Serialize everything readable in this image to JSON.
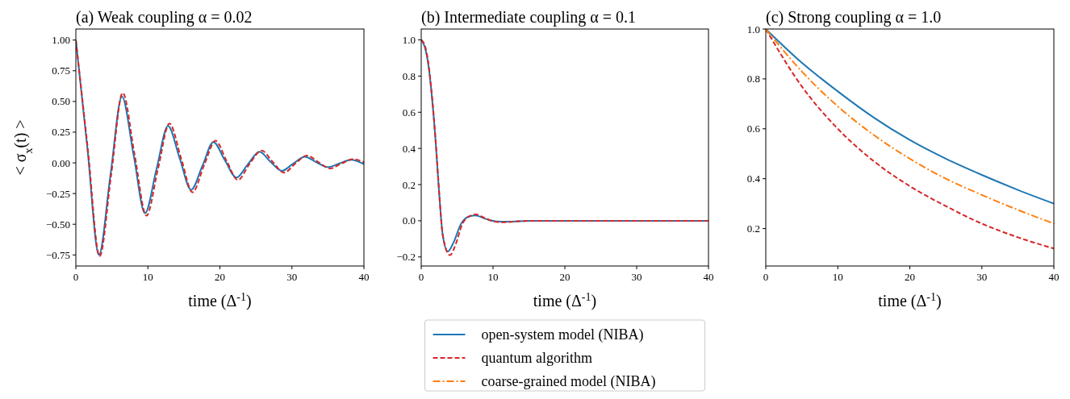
{
  "chart_data": [
    {
      "type": "line",
      "title": "(a) Weak coupling α = 0.02",
      "xlabel": "time (Δ$^{-1}$)",
      "ylabel": "< σ$_{x}$(t) >",
      "xlim": [
        0,
        40
      ],
      "xticks": [
        0,
        10,
        20,
        30,
        40
      ],
      "ylim": [
        -0.84,
        1.09
      ],
      "yticks": [
        {
          "value": -0.75,
          "label": "−0.75"
        },
        {
          "value": -0.5,
          "label": "−0.50"
        },
        {
          "value": -0.25,
          "label": "−0.25"
        },
        {
          "value": 0,
          "label": "0.00"
        },
        {
          "value": 0.25,
          "label": "0.25"
        },
        {
          "value": 0.5,
          "label": "0.50"
        },
        {
          "value": 0.75,
          "label": "0.75"
        },
        {
          "value": 1,
          "label": "1.00"
        }
      ],
      "grid": false,
      "series": [
        {
          "color": "#1f77b4",
          "line_style": "solid",
          "x": [
            0,
            1.6,
            3.2,
            4.8,
            6.4,
            8.0,
            9.6,
            11.2,
            12.8,
            14.4,
            16.0,
            17.6,
            19.1,
            20.7,
            22.3,
            23.9,
            25.5,
            27.0,
            28.6,
            30.2,
            31.8,
            33.4,
            35.0,
            36.6,
            38.2,
            40
          ],
          "values": [
            1.0,
            0.12,
            -0.75,
            -0.1,
            0.54,
            0.07,
            -0.41,
            -0.05,
            0.3,
            0.04,
            -0.22,
            -0.02,
            0.17,
            0.02,
            -0.12,
            -0.01,
            0.09,
            0.01,
            -0.065,
            -0.005,
            0.05,
            0.005,
            -0.035,
            -0.005,
            0.025,
            -0.01
          ]
        },
        {
          "color": "#d62728",
          "line_style": "dashed",
          "x": [
            0,
            1.65,
            3.3,
            4.9,
            6.5,
            8.15,
            9.8,
            11.4,
            13.0,
            14.6,
            16.2,
            17.8,
            19.4,
            20.9,
            22.5,
            24.1,
            25.8,
            27.3,
            28.9,
            30.5,
            32.1,
            33.7,
            35.3,
            36.9,
            38.5,
            40
          ],
          "values": [
            1.0,
            0.12,
            -0.76,
            -0.1,
            0.57,
            0.07,
            -0.43,
            -0.05,
            0.32,
            0.04,
            -0.24,
            -0.02,
            0.18,
            0.02,
            -0.14,
            -0.01,
            0.1,
            0.01,
            -0.08,
            -0.005,
            0.06,
            0.005,
            -0.045,
            -0.005,
            0.03,
            0.005
          ]
        }
      ]
    },
    {
      "type": "line",
      "title": "(b) Intermediate coupling α = 0.1",
      "xlabel": "time (Δ$^{-1}$)",
      "xlim": [
        0,
        40
      ],
      "xticks": [
        0,
        10,
        20,
        30,
        40
      ],
      "ylim": [
        -0.25,
        1.06
      ],
      "yticks": [
        {
          "value": -0.2,
          "label": "−0.2"
        },
        {
          "value": 0,
          "label": "0.0"
        },
        {
          "value": 0.2,
          "label": "0.2"
        },
        {
          "value": 0.4,
          "label": "0.4"
        },
        {
          "value": 0.6,
          "label": "0.6"
        },
        {
          "value": 0.8,
          "label": "0.8"
        },
        {
          "value": 1,
          "label": "1.0"
        }
      ],
      "grid": false,
      "series": [
        {
          "color": "#1f77b4",
          "line_style": "solid",
          "x": [
            0,
            0.5,
            1,
            1.5,
            2,
            2.5,
            3,
            3.7,
            4.5,
            5.5,
            6.5,
            7.5,
            9,
            10.5,
            12,
            15,
            20,
            30,
            40
          ],
          "values": [
            1.0,
            0.96,
            0.86,
            0.68,
            0.44,
            0.15,
            -0.08,
            -0.17,
            -0.12,
            -0.02,
            0.022,
            0.03,
            0.01,
            -0.004,
            -0.005,
            0,
            0,
            0,
            0
          ]
        },
        {
          "color": "#d62728",
          "line_style": "dashed",
          "x": [
            0,
            0.5,
            1,
            1.5,
            2,
            2.5,
            3,
            4.0,
            4.8,
            5.7,
            6.7,
            7.6,
            9,
            10.5,
            11.5,
            15,
            20,
            30,
            40
          ],
          "values": [
            1.0,
            0.97,
            0.87,
            0.69,
            0.45,
            0.16,
            -0.08,
            -0.19,
            -0.13,
            -0.02,
            0.025,
            0.035,
            0.012,
            -0.006,
            -0.008,
            0,
            0,
            0,
            0
          ]
        }
      ]
    },
    {
      "type": "line",
      "title": "(c) Strong coupling α = 1.0",
      "xlabel": "time (Δ$^{-1}$)",
      "xlim": [
        0,
        40
      ],
      "xticks": [
        0,
        10,
        20,
        30,
        40
      ],
      "ylim": [
        0.05,
        1.0
      ],
      "yticks": [
        {
          "value": 0.2,
          "label": "0.2"
        },
        {
          "value": 0.4,
          "label": "0.4"
        },
        {
          "value": 0.6,
          "label": "0.6"
        },
        {
          "value": 0.8,
          "label": "0.8"
        },
        {
          "value": 1,
          "label": "1.0"
        }
      ],
      "grid": false,
      "legend": "bottom",
      "series": [
        {
          "name": "open-system model (NIBA)",
          "color": "#1f77b4",
          "line_style": "solid",
          "x": [
            0,
            5,
            10,
            15,
            20,
            25,
            30,
            35,
            40
          ],
          "values": [
            1.0,
            0.865,
            0.75,
            0.645,
            0.555,
            0.48,
            0.415,
            0.355,
            0.3
          ]
        },
        {
          "name": "quantum algorithm",
          "color": "#d62728",
          "line_style": "dashed",
          "x": [
            0,
            5,
            10,
            15,
            20,
            25,
            30,
            35,
            40
          ],
          "values": [
            1.0,
            0.77,
            0.6,
            0.47,
            0.37,
            0.29,
            0.22,
            0.165,
            0.12
          ]
        },
        {
          "name": "coarse-grained model (NIBA)",
          "color": "#ff7f0e",
          "line_style": "dashdot",
          "x": [
            0,
            5,
            10,
            15,
            20,
            25,
            30,
            35,
            40
          ],
          "values": [
            1.0,
            0.83,
            0.69,
            0.575,
            0.48,
            0.4,
            0.335,
            0.275,
            0.22
          ]
        }
      ]
    }
  ]
}
